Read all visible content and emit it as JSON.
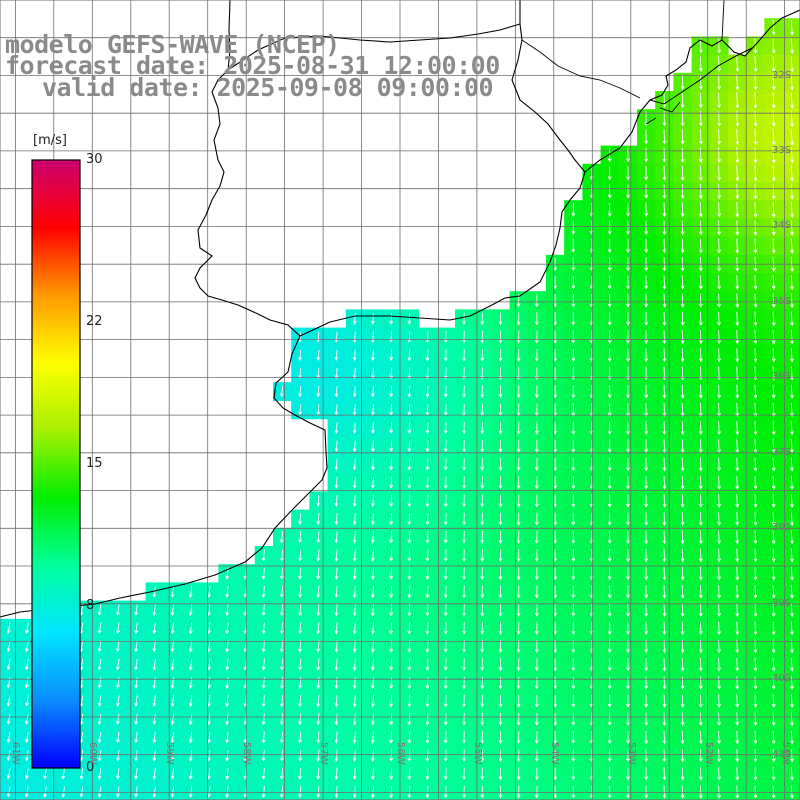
{
  "title": {
    "line1": "modelo GEFS-WAVE (NCEP)",
    "line2": "forecast date: 2025-08-31 12:00:00",
    "line3": "valid date: 2025-09-08 09:00:00"
  },
  "colorbar": {
    "unit": "[m/s]",
    "ticks": [
      "30",
      "22",
      "15",
      "8",
      "0"
    ],
    "tick_values": [
      30,
      22,
      15,
      8,
      0
    ],
    "range": [
      0,
      30
    ],
    "colors": [
      "#0000ff",
      "#0a8cff",
      "#00e5ff",
      "#00ff9c",
      "#00ee00",
      "#a6f000",
      "#ffff00",
      "#ff9900",
      "#ff0000",
      "#cc0070"
    ]
  },
  "axes": {
    "lat_labels": [
      "32S",
      "33S",
      "34S",
      "35S",
      "36S",
      "37S",
      "38S",
      "39S",
      "40S",
      "41S"
    ],
    "lat_values": [
      -32,
      -33,
      -34,
      -35,
      -36,
      -37,
      -38,
      -39,
      -40,
      -41
    ],
    "lon_labels": [
      "61W",
      "60W",
      "59W",
      "58W",
      "57W",
      "56W",
      "55W",
      "54W",
      "53W",
      "52W",
      "51W"
    ],
    "lon_values": [
      -61,
      -60,
      -59,
      -58,
      -57,
      -56,
      -55,
      -54,
      -53,
      -52,
      -51
    ],
    "lon_range": [
      -61.2,
      -50.8
    ],
    "lat_range": [
      -41.6,
      -31.0
    ],
    "grid": true
  },
  "wind": {
    "variable": "10 m wind speed",
    "units": "m/s",
    "description": "Southward wind arrows; stronger (green-yellow) offshore to the northeast, weaker (blue) near the Rio de la Plata coast"
  }
}
